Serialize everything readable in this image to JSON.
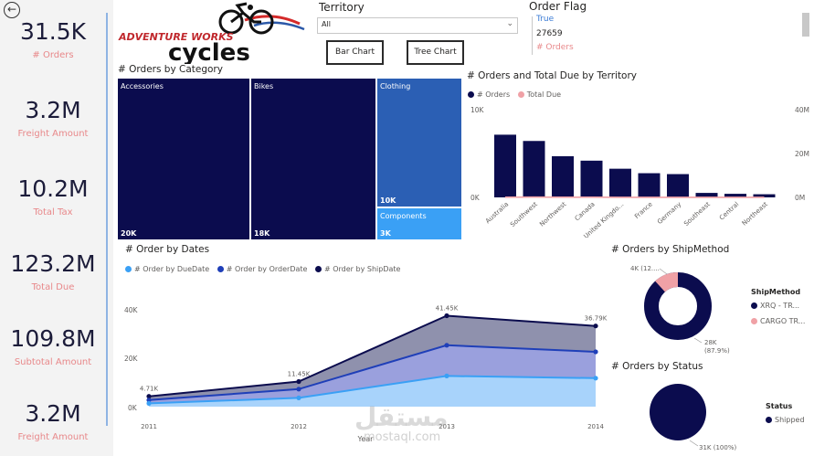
{
  "kpis": [
    {
      "value": "31.5K",
      "label": "# Orders"
    },
    {
      "value": "3.2M",
      "label": "Freight Amount"
    },
    {
      "value": "10.2M",
      "label": "Total Tax"
    },
    {
      "value": "123.2M",
      "label": "Total Due"
    },
    {
      "value": "109.8M",
      "label": "Subtotal Amount"
    },
    {
      "value": "3.2M",
      "label": "Freight Amount"
    }
  ],
  "logo": {
    "line1": "ADVENTURE WORKS",
    "line2": "cycles",
    "icon": "cyclist-icon"
  },
  "territory_slicer": {
    "title": "Territory",
    "value": "All"
  },
  "buttons": {
    "bar": "Bar Chart",
    "tree": "Tree Chart"
  },
  "order_flag": {
    "title": "Order Flag",
    "flag": "True",
    "value": "27659",
    "label": "# Orders"
  },
  "colors": {
    "navy": "#0b0c4e",
    "pink": "#f0a1a6",
    "blue1": "#2e7ee6",
    "blue2": "#1f3fb8",
    "light": "#3aa0f5"
  },
  "treemap": {
    "title": "# Orders by Category",
    "tiles": [
      {
        "label": "Accessories",
        "value": "20K"
      },
      {
        "label": "Bikes",
        "value": "18K"
      },
      {
        "label": "Clothing",
        "value": "10K"
      },
      {
        "label": "Components",
        "value": "3K"
      }
    ]
  },
  "territory_chart": {
    "title": "# Orders and Total Due by Territory",
    "legend": [
      "# Orders",
      "Total Due"
    ],
    "y_left_ticks": [
      "10K",
      "0K"
    ],
    "y_right_ticks": [
      "40M",
      "20M",
      "0M"
    ],
    "chart_data": {
      "type": "bar",
      "categories": [
        "Australia",
        "Southwest",
        "Northwest",
        "Canada",
        "United Kingdo...",
        "France",
        "Germany",
        "Southeast",
        "Central",
        "Northeast"
      ],
      "series": [
        {
          "name": "# Orders",
          "values": [
            7000,
            6300,
            4600,
            4100,
            3200,
            2700,
            2600,
            500,
            400,
            350
          ]
        },
        {
          "name": "Total Due",
          "values": [
            18000,
            27000,
            19000,
            19000,
            10000,
            9000,
            6000,
            9500,
            9000,
            7000
          ]
        }
      ],
      "ylim": [
        0,
        10000
      ],
      "y2lim": [
        0,
        40000000
      ]
    }
  },
  "dates_chart": {
    "title": "# Order by Dates",
    "legend": [
      "# Order by DueDate",
      "# Order by OrderDate",
      "# Order by ShipDate"
    ],
    "y_ticks": [
      "40K",
      "20K",
      "0K"
    ],
    "xlabel": "Year",
    "data_labels": [
      "4.71K",
      "11.45K",
      "41.45K",
      "36.79K"
    ],
    "chart_data": {
      "type": "area",
      "x": [
        "2011",
        "2012",
        "2013",
        "2014"
      ],
      "series": [
        {
          "name": "# Order by DueDate",
          "values": [
            1500,
            4000,
            14000,
            13000
          ]
        },
        {
          "name": "# Order by OrderDate",
          "values": [
            3000,
            8000,
            28000,
            25000
          ]
        },
        {
          "name": "# Order by ShipDate",
          "values": [
            4710,
            11450,
            41450,
            36790
          ]
        }
      ],
      "ylim": [
        0,
        45000
      ]
    }
  },
  "shipmethod_chart": {
    "title": "# Orders by ShipMethod",
    "legend_title": "ShipMethod",
    "legend": [
      "XRQ - TR...",
      "CARGO TR..."
    ],
    "label_small": "4K (12....",
    "label_big": "28K",
    "label_big_pct": "(87.9%)",
    "chart_data": {
      "type": "pie",
      "categories": [
        "XRQ - TR...",
        "CARGO TR..."
      ],
      "values": [
        87.9,
        12.1
      ]
    }
  },
  "status_chart": {
    "title": "# Orders by Status",
    "legend_title": "Status",
    "legend": [
      "Shipped"
    ],
    "label": "31K (100%)",
    "chart_data": {
      "type": "pie",
      "categories": [
        "Shipped"
      ],
      "values": [
        100
      ]
    }
  },
  "watermark": {
    "text": "مستقل",
    "sub": "mostaql.com"
  }
}
